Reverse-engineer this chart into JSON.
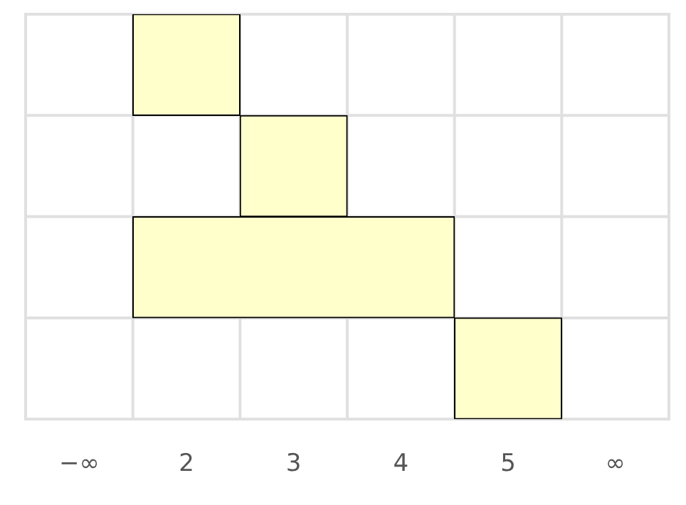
{
  "chart_data": {
    "type": "bar",
    "orientation": "horizontal",
    "categories": [
      null,
      null,
      null,
      null
    ],
    "values": [
      1,
      1,
      3,
      1
    ],
    "base": [
      1.5,
      2.5,
      1.5,
      4.5
    ],
    "color": "#ffffcc",
    "xlim": [
      0.5,
      6.5
    ],
    "xticks": [
      {
        "value": 1,
        "label": "−∞"
      },
      2,
      3,
      4,
      5,
      {
        "value": 6,
        "label": "∞"
      }
    ],
    "grid": true
  }
}
